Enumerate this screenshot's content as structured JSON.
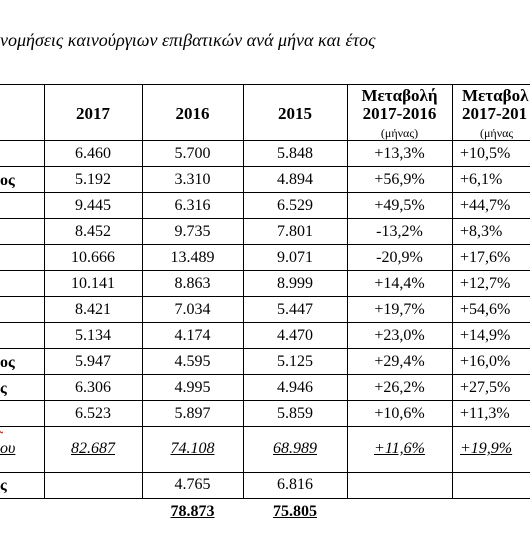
{
  "title": "ταξινομήσεις καινούργιων επιβατικών ανά μήνα και έτος",
  "title_visible": "νομήσεις καινούργιων επιβατικών ανά μήνα και έτος",
  "headers": {
    "y2017": "2017",
    "y2016": "2016",
    "y2015": "2015",
    "change1_title": "Μεταβολή",
    "change1_range": "2017-2016",
    "change1_unit": "(μήνας)",
    "change2_title": "Μεταβολ",
    "change2_range": "2017-201",
    "change2_unit": "(μήνας"
  },
  "row_fragments": [
    "",
    "ος",
    "",
    "",
    "",
    "",
    "",
    "",
    "ος",
    "ς",
    ""
  ],
  "rows": [
    {
      "v2017": "6.460",
      "v2016": "5.700",
      "v2015": "5.848",
      "c1": "+13,3%",
      "c2": "+10,5%"
    },
    {
      "v2017": "5.192",
      "v2016": "3.310",
      "v2015": "4.894",
      "c1": "+56,9%",
      "c2": "+6,1%"
    },
    {
      "v2017": "9.445",
      "v2016": "6.316",
      "v2015": "6.529",
      "c1": "+49,5%",
      "c2": "+44,7%"
    },
    {
      "v2017": "8.452",
      "v2016": "9.735",
      "v2015": "7.801",
      "c1": "-13,2%",
      "c2": "+8,3%"
    },
    {
      "v2017": "10.666",
      "v2016": "13.489",
      "v2015": "9.071",
      "c1": "-20,9%",
      "c2": "+17,6%"
    },
    {
      "v2017": "10.141",
      "v2016": "8.863",
      "v2015": "8.999",
      "c1": "+14,4%",
      "c2": "+12,7%"
    },
    {
      "v2017": "8.421",
      "v2016": "7.034",
      "v2015": "5.447",
      "c1": "+19,7%",
      "c2": "+54,6%"
    },
    {
      "v2017": "5.134",
      "v2016": "4.174",
      "v2015": "4.470",
      "c1": "+23,0%",
      "c2": "+14,9%"
    },
    {
      "v2017": "5.947",
      "v2016": "4.595",
      "v2015": "5.125",
      "c1": "+29,4%",
      "c2": "+16,0%"
    },
    {
      "v2017": "6.306",
      "v2016": "4.995",
      "v2015": "4.946",
      "c1": "+26,2%",
      "c2": "+27,5%"
    },
    {
      "v2017": "6.523",
      "v2016": "5.897",
      "v2015": "5.859",
      "c1": "+10,6%",
      "c2": "+11,3%"
    }
  ],
  "subtotal": {
    "label": "ου",
    "v2017": "82.687",
    "v2016": "74.108",
    "v2015": "68.989",
    "c1": "+11,6%",
    "c2": "+19,9%"
  },
  "extra_row": {
    "label": "ς",
    "v2016": "4.765",
    "v2015": "6.816"
  },
  "total": {
    "v2016": "78.873",
    "v2015": "75.805"
  }
}
